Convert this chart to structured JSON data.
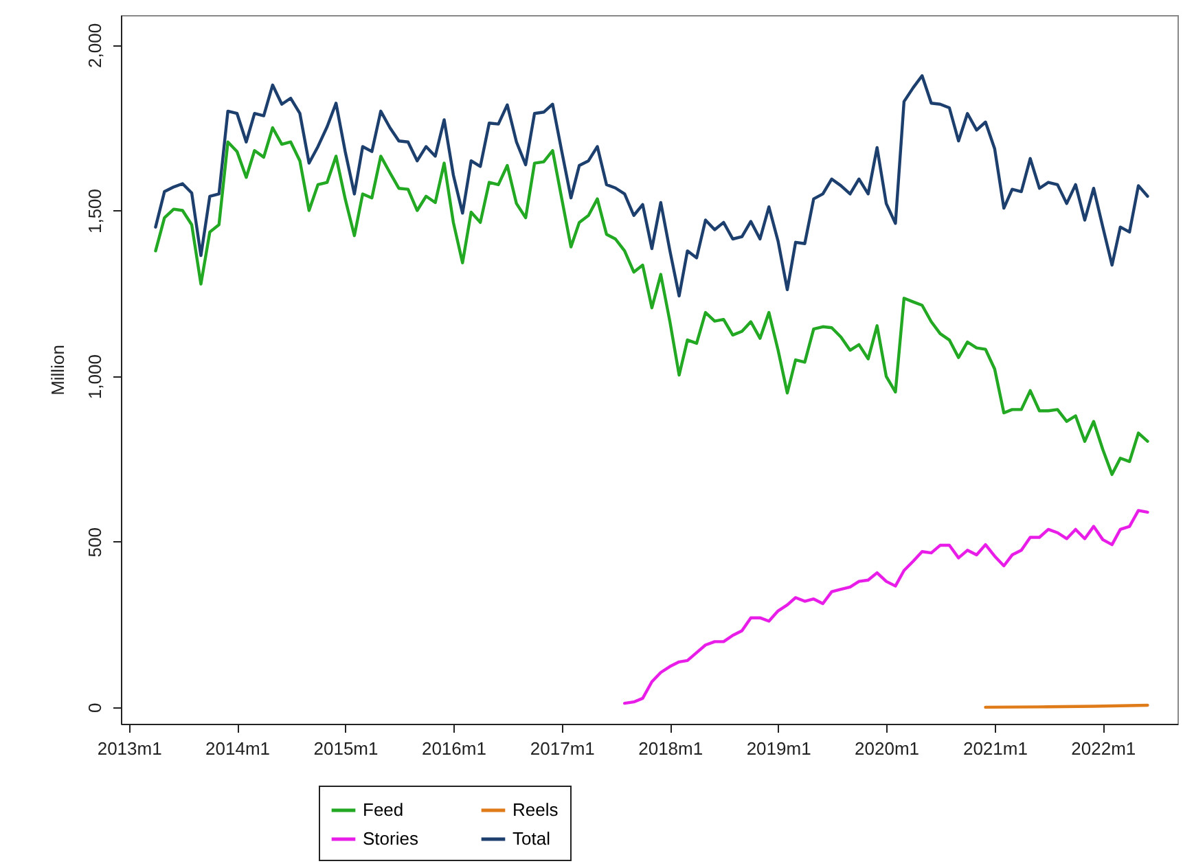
{
  "chart_data": {
    "type": "line",
    "ylabel": "Million",
    "legend": "bottom",
    "x": [
      "2013-04",
      "2013-05",
      "2013-06",
      "2013-07",
      "2013-08",
      "2013-09",
      "2013-10",
      "2013-11",
      "2013-12",
      "2014-01",
      "2014-02",
      "2014-03",
      "2014-04",
      "2014-05",
      "2014-06",
      "2014-07",
      "2014-08",
      "2014-09",
      "2014-10",
      "2014-11",
      "2014-12",
      "2015-01",
      "2015-02",
      "2015-03",
      "2015-04",
      "2015-05",
      "2015-06",
      "2015-07",
      "2015-08",
      "2015-09",
      "2015-10",
      "2015-11",
      "2015-12",
      "2016-01",
      "2016-02",
      "2016-03",
      "2016-04",
      "2016-05",
      "2016-06",
      "2016-07",
      "2016-08",
      "2016-09",
      "2016-10",
      "2016-11",
      "2016-12",
      "2017-01",
      "2017-02",
      "2017-03",
      "2017-04",
      "2017-05",
      "2017-06",
      "2017-07",
      "2017-08",
      "2017-09",
      "2017-10",
      "2017-11",
      "2017-12",
      "2018-01",
      "2018-02",
      "2018-03",
      "2018-04",
      "2018-05",
      "2018-06",
      "2018-07",
      "2018-08",
      "2018-09",
      "2018-10",
      "2018-11",
      "2018-12",
      "2019-01",
      "2019-02",
      "2019-03",
      "2019-04",
      "2019-05",
      "2019-06",
      "2019-07",
      "2019-08",
      "2019-09",
      "2019-10",
      "2019-11",
      "2019-12",
      "2020-01",
      "2020-02",
      "2020-03",
      "2020-04",
      "2020-05",
      "2020-06",
      "2020-07",
      "2020-08",
      "2020-09",
      "2020-10",
      "2020-11",
      "2020-12",
      "2021-01",
      "2021-02",
      "2021-03",
      "2021-04",
      "2021-05",
      "2021-06",
      "2021-07",
      "2021-08",
      "2021-09",
      "2021-10",
      "2021-11",
      "2021-12",
      "2022-01",
      "2022-02",
      "2022-03",
      "2022-04",
      "2022-05",
      "2022-06"
    ],
    "series": [
      {
        "name": "Feed",
        "color": "#22a822",
        "values": [
          1378,
          1478,
          1504,
          1500,
          1457,
          1278,
          1435,
          1457,
          1707,
          1678,
          1600,
          1681,
          1661,
          1750,
          1700,
          1707,
          1650,
          1500,
          1578,
          1585,
          1664,
          1535,
          1424,
          1550,
          1538,
          1664,
          1614,
          1567,
          1564,
          1500,
          1543,
          1524,
          1643,
          1464,
          1342,
          1495,
          1464,
          1585,
          1578,
          1636,
          1521,
          1478,
          1643,
          1647,
          1681,
          1535,
          1390,
          1464,
          1485,
          1535,
          1428,
          1414,
          1378,
          1314,
          1335,
          1206,
          1307,
          1164,
          1003,
          1109,
          1099,
          1192,
          1166,
          1171,
          1124,
          1135,
          1164,
          1114,
          1192,
          1078,
          949,
          1049,
          1042,
          1142,
          1149,
          1146,
          1118,
          1078,
          1095,
          1052,
          1152,
          999,
          952,
          1235,
          1224,
          1214,
          1164,
          1128,
          1109,
          1056,
          1103,
          1085,
          1081,
          1021,
          889,
          899,
          899,
          956,
          895,
          895,
          899,
          863,
          880,
          803,
          863,
          778,
          703,
          752,
          742,
          828,
          803
        ]
      },
      {
        "name": "Stories",
        "color": "#e81ee8",
        "x": [
          "2017-08",
          "2017-09",
          "2017-10",
          "2017-11",
          "2017-12",
          "2018-01",
          "2018-02",
          "2018-03",
          "2018-04",
          "2018-05",
          "2018-06",
          "2018-07",
          "2018-08",
          "2018-09",
          "2018-10",
          "2018-11",
          "2018-12",
          "2019-01",
          "2019-02",
          "2019-03",
          "2019-04",
          "2019-05",
          "2019-06",
          "2019-07",
          "2019-08",
          "2019-09",
          "2019-10",
          "2019-11",
          "2019-12",
          "2020-01",
          "2020-02",
          "2020-03",
          "2020-04",
          "2020-05",
          "2020-06",
          "2020-07",
          "2020-08",
          "2020-09",
          "2020-10",
          "2020-11",
          "2020-12",
          "2021-01",
          "2021-02",
          "2021-03",
          "2021-04",
          "2021-05",
          "2021-06",
          "2021-07",
          "2021-08",
          "2021-09",
          "2021-10",
          "2021-11",
          "2021-12",
          "2022-01",
          "2022-02",
          "2022-03",
          "2022-04",
          "2022-05",
          "2022-06"
        ],
        "values": [
          12,
          16,
          27,
          77,
          105,
          123,
          137,
          141,
          165,
          188,
          198,
          198,
          217,
          231,
          270,
          270,
          260,
          291,
          309,
          331,
          320,
          327,
          313,
          349,
          356,
          363,
          380,
          384,
          406,
          380,
          366,
          413,
          441,
          470,
          466,
          489,
          489,
          451,
          474,
          460,
          491,
          456,
          427,
          460,
          474,
          513,
          513,
          537,
          527,
          509,
          537,
          509,
          546,
          506,
          491,
          537,
          546,
          594,
          589
        ]
      },
      {
        "name": "Reels",
        "color": "#e07b1a",
        "x": [
          "2020-12",
          "2021-06",
          "2021-12",
          "2022-06"
        ],
        "values": [
          0,
          1,
          3,
          6
        ]
      },
      {
        "name": "Total",
        "color": "#1c3f6e",
        "values": [
          1450,
          1557,
          1571,
          1581,
          1553,
          1364,
          1543,
          1550,
          1800,
          1793,
          1707,
          1793,
          1786,
          1879,
          1821,
          1839,
          1793,
          1643,
          1693,
          1753,
          1824,
          1678,
          1550,
          1693,
          1678,
          1800,
          1750,
          1710,
          1707,
          1650,
          1693,
          1664,
          1774,
          1607,
          1492,
          1650,
          1633,
          1764,
          1761,
          1819,
          1707,
          1638,
          1793,
          1797,
          1821,
          1678,
          1538,
          1636,
          1650,
          1693,
          1578,
          1568,
          1550,
          1485,
          1518,
          1385,
          1524,
          1378,
          1242,
          1378,
          1357,
          1471,
          1442,
          1464,
          1414,
          1421,
          1467,
          1414,
          1511,
          1407,
          1261,
          1404,
          1400,
          1535,
          1550,
          1595,
          1575,
          1550,
          1595,
          1550,
          1690,
          1521,
          1461,
          1829,
          1871,
          1907,
          1824,
          1821,
          1810,
          1710,
          1793,
          1743,
          1767,
          1686,
          1507,
          1564,
          1557,
          1657,
          1567,
          1585,
          1578,
          1521,
          1578,
          1471,
          1567,
          1450,
          1335,
          1450,
          1435,
          1575,
          1543
        ]
      }
    ],
    "xlim": [
      "2012-12-05",
      "2022-09-10"
    ],
    "xticks": [
      {
        "value": "2013-01",
        "label": "2013m1"
      },
      {
        "value": "2014-01",
        "label": "2014m1"
      },
      {
        "value": "2015-01",
        "label": "2015m1"
      },
      {
        "value": "2016-01",
        "label": "2016m1"
      },
      {
        "value": "2017-01",
        "label": "2017m1"
      },
      {
        "value": "2018-01",
        "label": "2018m1"
      },
      {
        "value": "2019-01",
        "label": "2019m1"
      },
      {
        "value": "2020-01",
        "label": "2020m1"
      },
      {
        "value": "2021-01",
        "label": "2021m1"
      },
      {
        "value": "2022-01",
        "label": "2022m1"
      }
    ],
    "ylim": [
      -50,
      2090
    ],
    "yticks": [
      0,
      500,
      {
        "value": 1000,
        "label": "1,000"
      },
      {
        "value": 1500,
        "label": "1,500"
      },
      {
        "value": 2000,
        "label": "2,000"
      }
    ],
    "grid": false,
    "marker": "none",
    "line_style": "solid"
  }
}
